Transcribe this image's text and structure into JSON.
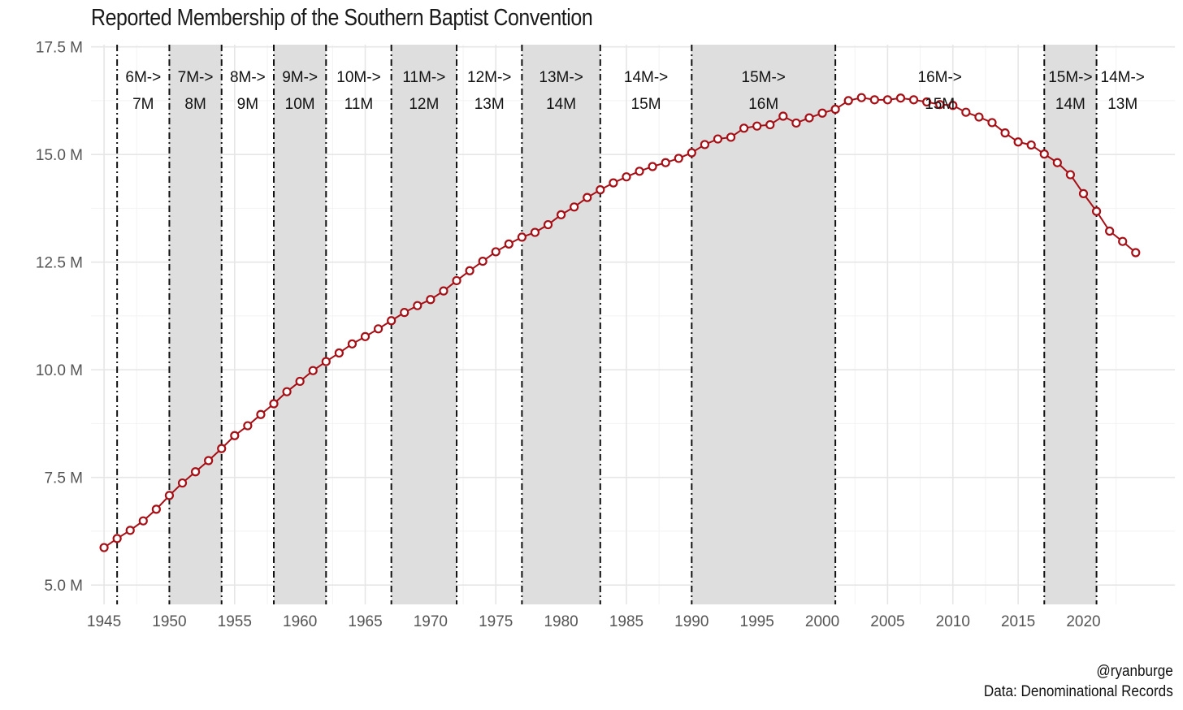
{
  "chart_data": {
    "type": "line",
    "title": "Reported Membership of the Southern Baptist Convention",
    "xlabel": "",
    "ylabel": "",
    "xlim": [
      1944,
      2027
    ],
    "ylim": [
      4.55,
      17.55
    ],
    "x_ticks": [
      1945,
      1950,
      1955,
      1960,
      1965,
      1970,
      1975,
      1980,
      1985,
      1990,
      1995,
      2000,
      2005,
      2010,
      2015,
      2020
    ],
    "y_ticks": [
      5.0,
      7.5,
      10.0,
      12.5,
      15.0,
      17.5
    ],
    "y_tick_labels": [
      "5.0 M",
      "7.5 M",
      "10.0 M",
      "12.5 M",
      "15.0 M",
      "17.5 M"
    ],
    "grid": true,
    "line_color": "#a50f15",
    "band_fill": "#dedede",
    "x": [
      1945,
      1946,
      1947,
      1948,
      1949,
      1950,
      1951,
      1952,
      1953,
      1954,
      1955,
      1956,
      1957,
      1958,
      1959,
      1960,
      1961,
      1962,
      1963,
      1964,
      1965,
      1966,
      1967,
      1968,
      1969,
      1970,
      1971,
      1972,
      1973,
      1974,
      1975,
      1976,
      1977,
      1978,
      1979,
      1980,
      1981,
      1982,
      1983,
      1984,
      1985,
      1986,
      1987,
      1988,
      1989,
      1990,
      1991,
      1992,
      1993,
      1994,
      1995,
      1996,
      1997,
      1998,
      1999,
      2000,
      2001,
      2002,
      2003,
      2004,
      2005,
      2006,
      2007,
      2008,
      2009,
      2010,
      2011,
      2012,
      2013,
      2014,
      2015,
      2016,
      2017,
      2018,
      2019,
      2020,
      2021,
      2022,
      2023,
      2024
    ],
    "values": [
      5.87,
      6.08,
      6.27,
      6.49,
      6.76,
      7.08,
      7.37,
      7.63,
      7.89,
      8.17,
      8.47,
      8.7,
      8.96,
      9.21,
      9.49,
      9.73,
      9.98,
      10.19,
      10.39,
      10.6,
      10.77,
      10.95,
      11.14,
      11.33,
      11.49,
      11.63,
      11.83,
      12.07,
      12.3,
      12.52,
      12.74,
      12.92,
      13.08,
      13.19,
      13.37,
      13.6,
      13.78,
      14.0,
      14.18,
      14.34,
      14.48,
      14.61,
      14.72,
      14.81,
      14.91,
      15.04,
      15.23,
      15.36,
      15.4,
      15.61,
      15.66,
      15.69,
      15.89,
      15.73,
      15.85,
      15.96,
      16.05,
      16.25,
      16.32,
      16.27,
      16.27,
      16.31,
      16.27,
      16.22,
      16.16,
      16.14,
      15.98,
      15.87,
      15.74,
      15.5,
      15.29,
      15.22,
      15.01,
      14.81,
      14.53,
      14.09,
      13.68,
      13.22,
      12.98,
      12.72
    ],
    "bands": [
      {
        "start": 1946,
        "end": 1950,
        "shaded": false,
        "from": "6M->",
        "to": "7M"
      },
      {
        "start": 1950,
        "end": 1954,
        "shaded": true,
        "from": "7M->",
        "to": "8M"
      },
      {
        "start": 1954,
        "end": 1958,
        "shaded": false,
        "from": "8M->",
        "to": "9M"
      },
      {
        "start": 1958,
        "end": 1962,
        "shaded": true,
        "from": "9M->",
        "to": "10M"
      },
      {
        "start": 1962,
        "end": 1967,
        "shaded": false,
        "from": "10M->",
        "to": "11M"
      },
      {
        "start": 1967,
        "end": 1972,
        "shaded": true,
        "from": "11M->",
        "to": "12M"
      },
      {
        "start": 1972,
        "end": 1977,
        "shaded": false,
        "from": "12M->",
        "to": "13M"
      },
      {
        "start": 1977,
        "end": 1983,
        "shaded": true,
        "from": "13M->",
        "to": "14M"
      },
      {
        "start": 1983,
        "end": 1990,
        "shaded": false,
        "from": "14M->",
        "to": "15M"
      },
      {
        "start": 1990,
        "end": 2001,
        "shaded": true,
        "from": "15M->",
        "to": "16M"
      },
      {
        "start": 2001,
        "end": 2017,
        "shaded": false,
        "from": "16M->",
        "to": "15M"
      },
      {
        "start": 2017,
        "end": 2021,
        "shaded": true,
        "from": "15M->",
        "to": "14M"
      },
      {
        "start": 2021,
        "end": 2025,
        "shaded": false,
        "from": "14M->",
        "to": "13M"
      }
    ],
    "caption": [
      "@ryanburge",
      "Data: Denominational Records"
    ]
  }
}
